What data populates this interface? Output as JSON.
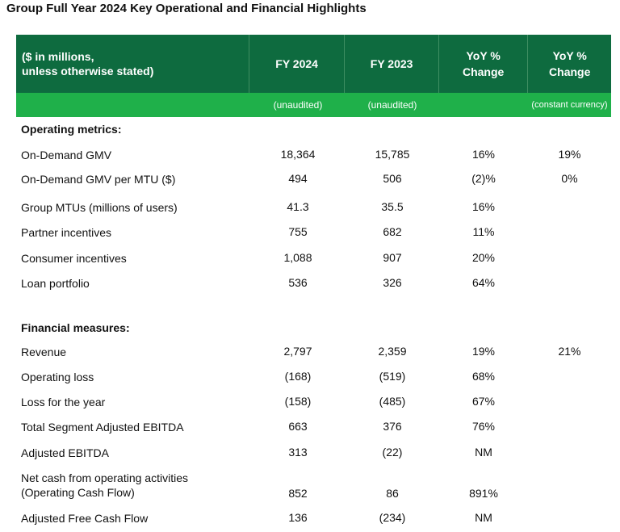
{
  "title": "Group Full Year 2024 Key Operational and Financial Highlights",
  "header": {
    "col0_line1": "($ in millions,",
    "col0_line2": "unless otherwise stated)",
    "fy2024": "FY 2024",
    "fy2023": "FY 2023",
    "yoy_line1": "YoY %",
    "yoy_line2": "Change",
    "yoycc_line1": "YoY %",
    "yoycc_line2": "Change"
  },
  "subheader": {
    "fy2024": "(unaudited)",
    "fy2023": "(unaudited)",
    "yoy": "",
    "yoycc": "(constant currency)"
  },
  "sections": {
    "operating": "Operating metrics:",
    "financial": "Financial measures:"
  },
  "rows": [
    {
      "label": "On-Demand GMV",
      "fy2024": "18,364",
      "fy2023": "15,785",
      "yoy": "16%",
      "yoycc": "19%"
    },
    {
      "label": "On-Demand GMV per MTU ($)",
      "fy2024": "494",
      "fy2023": "506",
      "yoy": "(2)%",
      "yoycc": "0%"
    },
    {
      "label": "Group MTUs (millions of users)",
      "fy2024": "41.3",
      "fy2023": "35.5",
      "yoy": "16%",
      "yoycc": ""
    },
    {
      "label": "Partner incentives",
      "fy2024": "755",
      "fy2023": "682",
      "yoy": "11%",
      "yoycc": ""
    },
    {
      "label": "Consumer incentives",
      "fy2024": "1,088",
      "fy2023": "907",
      "yoy": "20%",
      "yoycc": ""
    },
    {
      "label": "Loan portfolio",
      "fy2024": "536",
      "fy2023": "326",
      "yoy": "64%",
      "yoycc": ""
    },
    {
      "label": "Revenue",
      "fy2024": "2,797",
      "fy2023": "2,359",
      "yoy": "19%",
      "yoycc": "21%"
    },
    {
      "label": "Operating loss",
      "fy2024": "(168)",
      "fy2023": "(519)",
      "yoy": "68%",
      "yoycc": ""
    },
    {
      "label": "Loss for the year",
      "fy2024": "(158)",
      "fy2023": "(485)",
      "yoy": "67%",
      "yoycc": ""
    },
    {
      "label": "Total Segment Adjusted EBITDA",
      "fy2024": "663",
      "fy2023": "376",
      "yoy": "76%",
      "yoycc": ""
    },
    {
      "label": "Adjusted EBITDA",
      "fy2024": "313",
      "fy2023": "(22)",
      "yoy": "NM",
      "yoycc": ""
    },
    {
      "label_line1": "Net cash from operating activities",
      "label_line2": "(Operating Cash Flow)",
      "fy2024": "852",
      "fy2023": "86",
      "yoy": "891%",
      "yoycc": ""
    },
    {
      "label": "Adjusted Free Cash Flow",
      "fy2024": "136",
      "fy2023": "(234)",
      "yoy": "NM",
      "yoycc": ""
    }
  ]
}
